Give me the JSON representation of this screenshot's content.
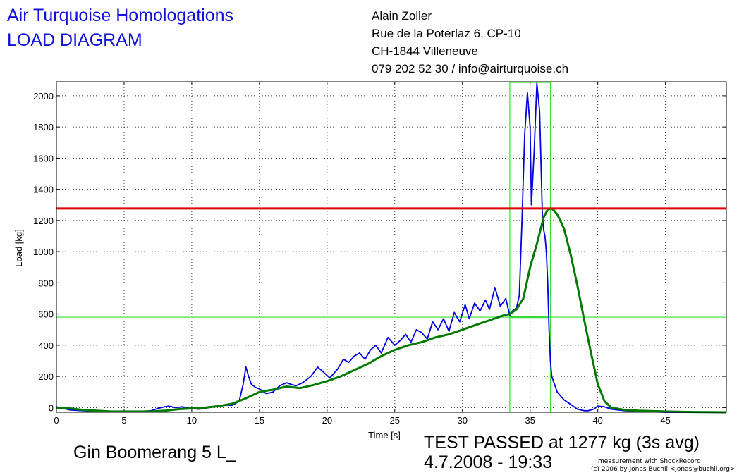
{
  "header": {
    "title_line1": "Air Turquoise Homologations",
    "title_line2": "LOAD DIAGRAM",
    "address": [
      "Alain Zoller",
      "Rue de la Poterlaz 6, CP-10",
      "CH-1844 Villeneuve",
      "079 202 52 30 / info@airturquoise.ch"
    ]
  },
  "footer": {
    "glider_name": "Gin Boomerang 5 L_",
    "result": "TEST PASSED at 1277 kg (3s avg)",
    "datetime": "4.7.2008 - 19:33",
    "credit_line1": "measurement with ShockRecord",
    "credit_line2": "(c) 2006 by Jonas Buchli <jonas@buchli.org>"
  },
  "colors": {
    "raw_load": "#0000e0",
    "avg_load": "#007a00",
    "limit_line": "#e00000",
    "markers": "#33dd33",
    "title_text": "#1010d8"
  },
  "chart_data": {
    "type": "line",
    "title": "",
    "xlabel": "Time [s]",
    "ylabel": "Load [kg]",
    "xlim": [
      0,
      49.5
    ],
    "ylim": [
      -30,
      2090
    ],
    "x_ticks": [
      0,
      5,
      10,
      15,
      20,
      25,
      30,
      35,
      40,
      45
    ],
    "y_ticks": [
      0,
      200,
      400,
      600,
      800,
      1000,
      1200,
      1400,
      1600,
      1800,
      2000
    ],
    "grid": true,
    "series": [
      {
        "key": "raw",
        "color": "#0000e0",
        "x": [
          0,
          0.5,
          1,
          2,
          3,
          4,
          5,
          6,
          7,
          7.5,
          8,
          8.3,
          8.8,
          9.3,
          10,
          10.5,
          11,
          11.5,
          12,
          12.5,
          13,
          13.5,
          13.8,
          14,
          14.2,
          14.4,
          14.7,
          15,
          15.5,
          16,
          16.5,
          17,
          17.3,
          17.7,
          18.2,
          18.8,
          19.3,
          19.7,
          20.2,
          20.8,
          21.2,
          21.6,
          22,
          22.4,
          22.8,
          23.2,
          23.6,
          24,
          24.5,
          25,
          25.4,
          25.8,
          26.2,
          26.6,
          27,
          27.4,
          27.8,
          28.2,
          28.6,
          29,
          29.4,
          29.8,
          30.2,
          30.5,
          30.9,
          31.3,
          31.7,
          32,
          32.4,
          32.8,
          33.2,
          33.5,
          33.7,
          34,
          34.2,
          34.4,
          34.6,
          34.8,
          35,
          35.1,
          35.3,
          35.5,
          35.7,
          35.9,
          36,
          36.1,
          36.2,
          36.3,
          36.4,
          36.5,
          36.6,
          36.8,
          37,
          37.5,
          38,
          38.5,
          39,
          39.3,
          39.7,
          40,
          40.5,
          41,
          42,
          43,
          45,
          47,
          49.5
        ],
        "values": [
          5,
          -5,
          -15,
          -20,
          -25,
          -25,
          -25,
          -25,
          -20,
          -5,
          5,
          10,
          0,
          5,
          -5,
          -10,
          -5,
          5,
          10,
          15,
          15,
          40,
          150,
          260,
          200,
          150,
          130,
          120,
          90,
          100,
          140,
          160,
          150,
          140,
          160,
          200,
          260,
          230,
          190,
          250,
          310,
          290,
          330,
          350,
          310,
          370,
          400,
          350,
          450,
          400,
          430,
          470,
          420,
          500,
          480,
          440,
          550,
          500,
          570,
          490,
          610,
          550,
          660,
          570,
          670,
          620,
          690,
          630,
          770,
          650,
          700,
          590,
          620,
          640,
          720,
          1200,
          1750,
          2020,
          1800,
          1300,
          1650,
          2080,
          1900,
          1250,
          1140,
          1100,
          1000,
          800,
          500,
          300,
          200,
          150,
          100,
          50,
          20,
          -10,
          -20,
          -20,
          -10,
          10,
          5,
          -10,
          -20,
          -25,
          -30,
          -30,
          -30
        ]
      },
      {
        "key": "avg",
        "color": "#007a00",
        "x": [
          0,
          1,
          2,
          3,
          4,
          5,
          6,
          7,
          8,
          9,
          10,
          11,
          12,
          13,
          14,
          15,
          16,
          17,
          18,
          19,
          20,
          21,
          22,
          23,
          24,
          25,
          26,
          27,
          28,
          29,
          30,
          31,
          32,
          33,
          33.5,
          34,
          34.5,
          35,
          35.5,
          36,
          36.3,
          36.5,
          36.7,
          37,
          37.5,
          38,
          38.5,
          39,
          39.5,
          40,
          40.5,
          41,
          42,
          43,
          45,
          47,
          49.5
        ],
        "values": [
          0,
          -5,
          -15,
          -20,
          -25,
          -25,
          -25,
          -25,
          -20,
          -10,
          -5,
          0,
          10,
          25,
          60,
          100,
          115,
          135,
          125,
          145,
          170,
          200,
          240,
          280,
          330,
          370,
          400,
          420,
          450,
          470,
          500,
          530,
          560,
          590,
          600,
          630,
          700,
          900,
          1050,
          1220,
          1270,
          1277,
          1270,
          1240,
          1150,
          980,
          780,
          560,
          350,
          150,
          40,
          0,
          -15,
          -20,
          -25,
          -28,
          -30
        ]
      }
    ],
    "limit_value": 1277,
    "marker_window": [
      33.5,
      36.5
    ],
    "marker_hline": 580,
    "marker_short_hline": 580
  }
}
